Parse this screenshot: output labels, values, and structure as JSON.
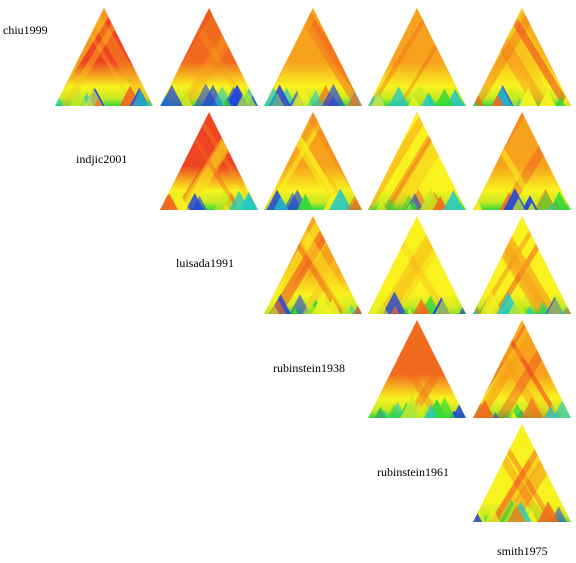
{
  "labels": [
    "chiu1999",
    "indjic2001",
    "luisada1991",
    "rubinstein1938",
    "rubinstein1961",
    "smith1975"
  ],
  "matrix": {
    "rows": [
      {
        "row": 0,
        "cols": [
          0,
          1,
          2,
          3,
          4
        ],
        "palette": [
          "red",
          "orange-red",
          "orange",
          "orange",
          "orange-yellow"
        ]
      },
      {
        "row": 1,
        "cols": [
          1,
          2,
          3,
          4
        ],
        "palette": [
          "red",
          "orange",
          "yellow",
          "orange"
        ]
      },
      {
        "row": 2,
        "cols": [
          2,
          3,
          4
        ],
        "palette": [
          "orange",
          "yellow",
          "yellow"
        ]
      },
      {
        "row": 3,
        "cols": [
          3,
          4
        ],
        "palette": [
          "orange-red",
          "orange"
        ]
      },
      {
        "row": 4,
        "cols": [
          4
        ],
        "palette": [
          "yellow"
        ]
      }
    ]
  },
  "colors": {
    "red": "#ee4422",
    "orange-red": "#f26a1e",
    "orange": "#f7a21c",
    "orange-yellow": "#f9c51c",
    "yellow": "#f9f21e",
    "lime": "#c8ea22",
    "green": "#38d838",
    "cyan": "#22c8c8",
    "blue": "#2244dd"
  }
}
